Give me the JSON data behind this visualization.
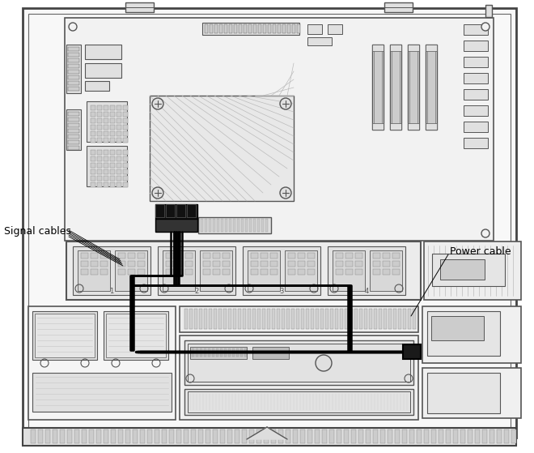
{
  "bg_color": "#ffffff",
  "line_color": "#555555",
  "dark_line": "#111111",
  "cable_color": "#000000",
  "light_gray": "#aaaaaa",
  "mid_gray": "#888888",
  "fill_light": "#f0f0f0",
  "fill_mid": "#e0e0e0",
  "fill_dark": "#cccccc",
  "label_signal": "Signal cables",
  "label_power": "Power cable",
  "figsize": [
    6.6,
    5.59
  ],
  "dpi": 100
}
